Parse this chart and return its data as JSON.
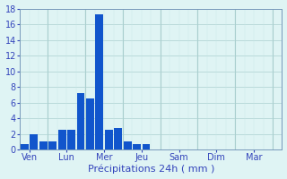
{
  "bar_values": [
    0.7,
    2.0,
    1.0,
    1.0,
    2.5,
    2.5,
    7.2,
    6.5,
    17.3,
    2.5,
    2.7,
    1.0,
    0.7,
    0.7,
    0.0,
    0.0,
    0.0,
    0.0,
    0.0,
    0.0,
    0.0,
    0.0,
    0.0,
    0.0,
    0.0,
    0.0,
    0.0,
    0.0
  ],
  "bar_color": "#1155cc",
  "background_color": "#dff4f4",
  "grid_color_minor": "#c8e8e8",
  "grid_color_major": "#aacfcf",
  "xlabel": "Précipitations 24h ( mm )",
  "xlabel_color": "#3344bb",
  "tick_color": "#3344bb",
  "ylim": [
    0,
    18
  ],
  "yticks": [
    0,
    2,
    4,
    6,
    8,
    10,
    12,
    14,
    16,
    18
  ],
  "day_labels": [
    "Ven",
    "Lun",
    "Mer",
    "Jeu",
    "Sam",
    "Dim",
    "Mar"
  ],
  "day_tick_positions": [
    0.5,
    4.5,
    8.5,
    12.5,
    16.5,
    20.5,
    24.5
  ],
  "day_separator_positions": [
    2.5,
    6.5,
    10.5,
    14.5,
    18.5,
    22.5
  ],
  "xlabel_fontsize": 8,
  "tick_fontsize": 7,
  "n_bars": 28,
  "xlim": [
    -0.5,
    27.5
  ]
}
